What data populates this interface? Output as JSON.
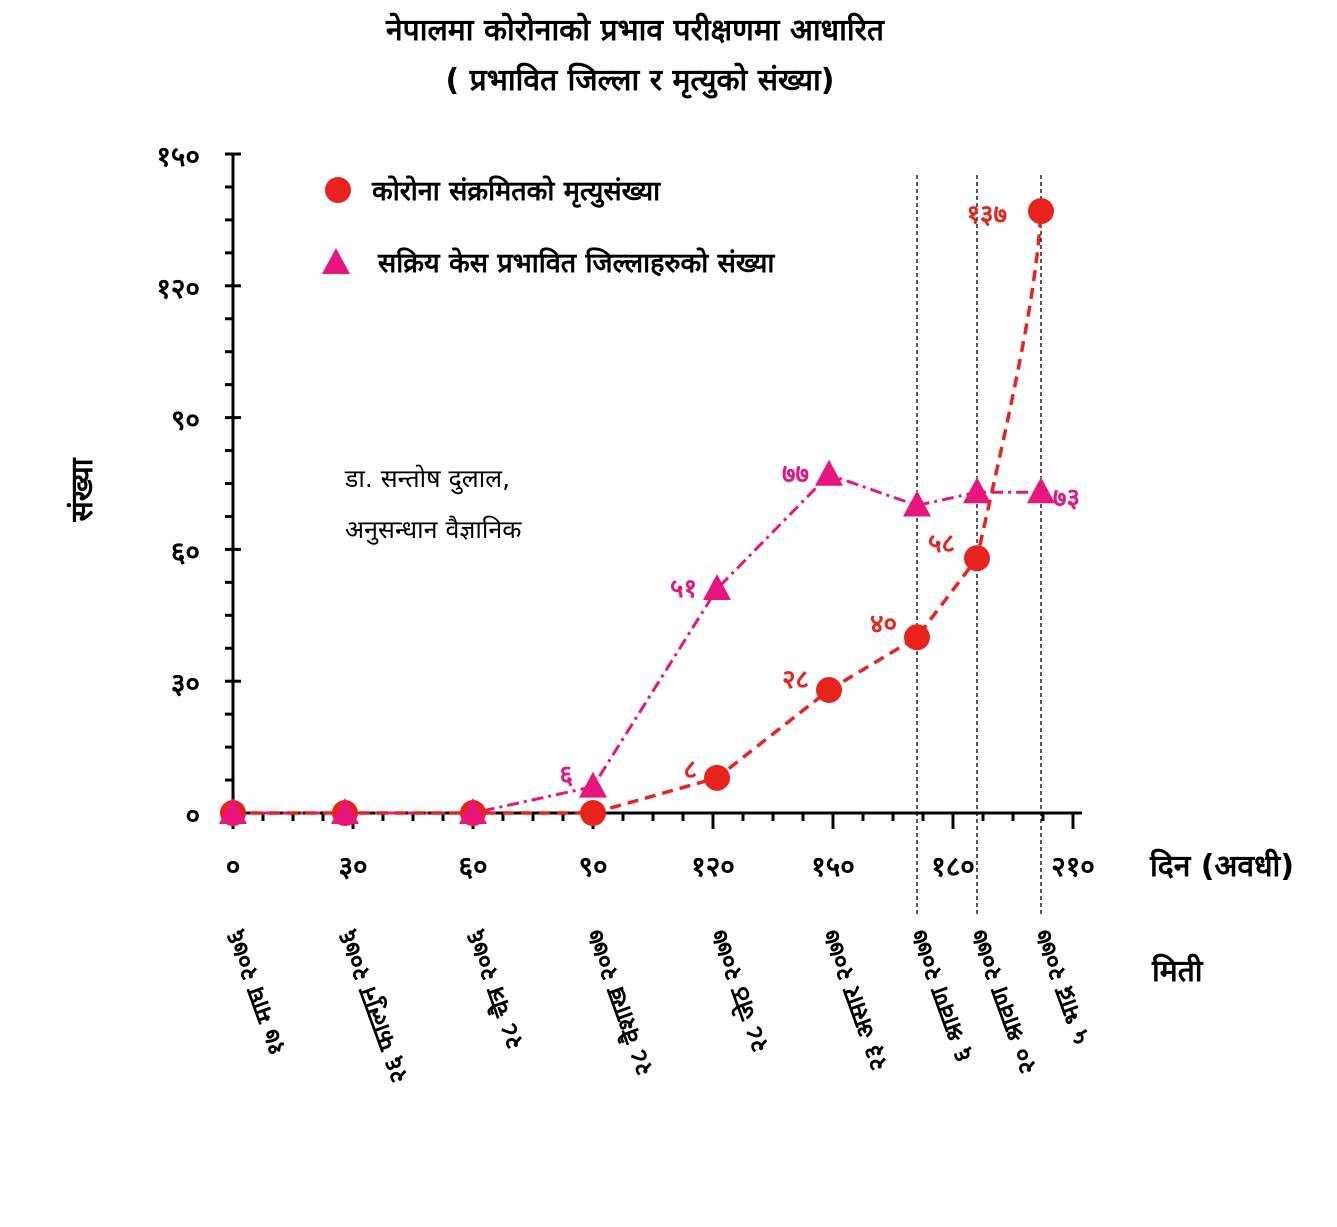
{
  "title_line1": "नेपालमा कोरोनाको प्रभाव परीक्षणमा आधारित",
  "title_line2": "(  प्रभावित   जिल्ला र  मृत्युको संख्या)",
  "credit_line1": "डा. सन्तोष दुलाल,",
  "credit_line2": "अनुसन्धान वैज्ञानिक",
  "x_unit_label": "दिन (अवधी)",
  "date_axis_label": "मिती",
  "colors": {
    "deaths": "#e8231e",
    "districts": "#e8157e",
    "axis": "#000000"
  },
  "chart_data": {
    "type": "line",
    "xlabel": "दिन (अवधी)",
    "ylabel": "संख्या",
    "xlim": [
      0,
      210
    ],
    "ylim": [
      0,
      150
    ],
    "x_ticks": [
      0,
      30,
      60,
      90,
      120,
      150,
      180,
      210
    ],
    "x_tick_labels": [
      "०",
      "३०",
      "६०",
      "९०",
      "१२०",
      "१५०",
      "१८०",
      "२१०"
    ],
    "y_ticks": [
      0,
      30,
      60,
      90,
      120,
      150
    ],
    "y_tick_labels": [
      "०",
      "३०",
      "६०",
      "९०",
      "१२०",
      "१५०"
    ],
    "grid": false,
    "legend_position": "top-left",
    "series": [
      {
        "name": "कोरोना संक्रमितको मृत्युसंख्या",
        "marker": "circle",
        "line_style": "dashed",
        "color": "#e8231e",
        "x": [
          0,
          28,
          60,
          90,
          121,
          149,
          171,
          186,
          202
        ],
        "y": [
          0,
          0,
          0,
          0,
          8,
          28,
          40,
          58,
          137
        ],
        "labels": [
          null,
          null,
          null,
          null,
          "८",
          "२८",
          "४०",
          "५८",
          "१३७"
        ]
      },
      {
        "name": "सक्रिय केस प्रभावित जिल्लाहरुको संख्या",
        "marker": "triangle",
        "line_style": "dashdot",
        "color": "#e8157e",
        "x": [
          0,
          28,
          60,
          90,
          121,
          149,
          171,
          186,
          202
        ],
        "y": [
          0,
          0,
          0,
          6,
          51,
          77,
          70,
          73,
          73
        ],
        "labels": [
          null,
          null,
          null,
          "६",
          "५१",
          "७७",
          null,
          null,
          "७३"
        ]
      }
    ],
    "reference_lines_x": [
      171,
      186,
      202
    ],
    "date_labels": [
      {
        "x": 0,
        "text": "१७ माघ २०७६"
      },
      {
        "x": 28,
        "text": "२६ फाल्गुन २०७६"
      },
      {
        "x": 60,
        "text": "२८ चैत्र २०७६"
      },
      {
        "x": 90,
        "text": "२८ वैशाख २०७७"
      },
      {
        "x": 121,
        "text": "२८ जेठ २०७७"
      },
      {
        "x": 149,
        "text": "२३ असार २०७७"
      },
      {
        "x": 171,
        "text": "६ श्रावण २०७७"
      },
      {
        "x": 186,
        "text": "२० श्रावण २०७७"
      },
      {
        "x": 202,
        "text": "५ भाद्र २०७७"
      }
    ]
  }
}
